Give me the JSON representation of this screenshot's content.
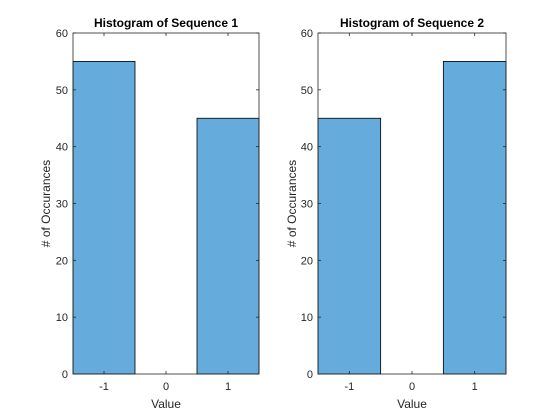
{
  "chart_data": [
    {
      "type": "bar",
      "title": "Histogram of Sequence 1",
      "xlabel": "Value",
      "ylabel": "# of Occurances",
      "categories": [
        -1,
        0,
        1
      ],
      "x_tick_labels": [
        "-1",
        "0",
        "1"
      ],
      "values": [
        55,
        0,
        45
      ],
      "xlim": [
        -1.5,
        1.5
      ],
      "ylim": [
        0,
        60
      ],
      "y_ticks": [
        0,
        10,
        20,
        30,
        40,
        50,
        60
      ],
      "bar_color": "#65abdb",
      "grid": false
    },
    {
      "type": "bar",
      "title": "Histogram of Sequence 2",
      "xlabel": "Value",
      "ylabel": "# of Occurances",
      "categories": [
        -1,
        0,
        1
      ],
      "x_tick_labels": [
        "-1",
        "0",
        "1"
      ],
      "values": [
        45,
        0,
        55
      ],
      "xlim": [
        -1.5,
        1.5
      ],
      "ylim": [
        0,
        60
      ],
      "y_ticks": [
        0,
        10,
        20,
        30,
        40,
        50,
        60
      ],
      "bar_color": "#65abdb",
      "grid": false
    }
  ]
}
